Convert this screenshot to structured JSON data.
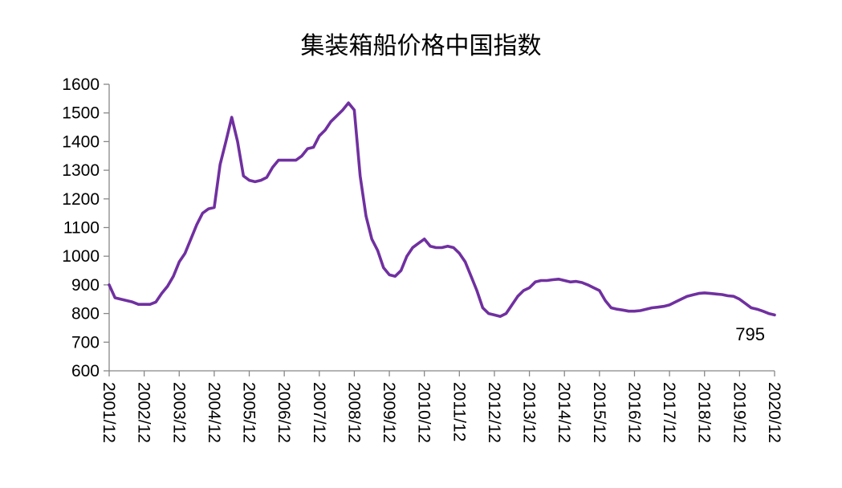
{
  "chart_data": {
    "type": "line",
    "title": "集装箱船价格中国指数",
    "xlabel": "",
    "ylabel": "",
    "ylim": [
      600,
      1600
    ],
    "y_ticks": [
      600,
      700,
      800,
      900,
      1000,
      1100,
      1200,
      1300,
      1400,
      1500,
      1600
    ],
    "x_ticks": [
      "2001/12",
      "2002/12",
      "2003/12",
      "2004/12",
      "2005/12",
      "2006/12",
      "2007/12",
      "2008/12",
      "2009/12",
      "2010/12",
      "2011/12",
      "2012/12",
      "2013/12",
      "2014/12",
      "2015/12",
      "2016/12",
      "2017/12",
      "2018/12",
      "2019/12",
      "2020/12"
    ],
    "grid": false,
    "legend": "none",
    "annotation": {
      "text": "795"
    },
    "line_color": "#7030A0",
    "series": [
      {
        "x": [
          "2001/12",
          "2002/02",
          "2002/04",
          "2002/06",
          "2002/08",
          "2002/10",
          "2002/12",
          "2003/02",
          "2003/04",
          "2003/06",
          "2003/08",
          "2003/10",
          "2003/12",
          "2004/02",
          "2004/04",
          "2004/06",
          "2004/08",
          "2004/10",
          "2004/12",
          "2005/02",
          "2005/04",
          "2005/06",
          "2005/08",
          "2005/10",
          "2005/12",
          "2006/02",
          "2006/04",
          "2006/06",
          "2006/08",
          "2006/10",
          "2006/12",
          "2007/02",
          "2007/04",
          "2007/06",
          "2007/08",
          "2007/10",
          "2007/12",
          "2008/02",
          "2008/04",
          "2008/06",
          "2008/08",
          "2008/10",
          "2008/12",
          "2009/02",
          "2009/04",
          "2009/06",
          "2009/08",
          "2009/10",
          "2009/12",
          "2010/02",
          "2010/04",
          "2010/06",
          "2010/08",
          "2010/10",
          "2010/12",
          "2011/02",
          "2011/04",
          "2011/06",
          "2011/08",
          "2011/10",
          "2011/12",
          "2012/02",
          "2012/04",
          "2012/06",
          "2012/08",
          "2012/10",
          "2012/12",
          "2013/02",
          "2013/04",
          "2013/06",
          "2013/08",
          "2013/10",
          "2013/12",
          "2014/02",
          "2014/04",
          "2014/06",
          "2014/08",
          "2014/10",
          "2014/12",
          "2015/02",
          "2015/04",
          "2015/06",
          "2015/08",
          "2015/10",
          "2015/12",
          "2016/02",
          "2016/04",
          "2016/06",
          "2016/08",
          "2016/10",
          "2016/12",
          "2017/02",
          "2017/04",
          "2017/06",
          "2017/08",
          "2017/10",
          "2017/12",
          "2018/02",
          "2018/04",
          "2018/06",
          "2018/08",
          "2018/10",
          "2018/12",
          "2019/02",
          "2019/04",
          "2019/06",
          "2019/08",
          "2019/10",
          "2019/12",
          "2020/02",
          "2020/04",
          "2020/06",
          "2020/08",
          "2020/10",
          "2020/12"
        ],
        "values": [
          900,
          855,
          850,
          845,
          840,
          832,
          832,
          832,
          840,
          870,
          895,
          930,
          980,
          1010,
          1060,
          1110,
          1150,
          1165,
          1170,
          1320,
          1400,
          1485,
          1400,
          1280,
          1265,
          1260,
          1265,
          1275,
          1310,
          1335,
          1335,
          1335,
          1335,
          1350,
          1375,
          1380,
          1420,
          1440,
          1470,
          1490,
          1510,
          1535,
          1510,
          1280,
          1140,
          1060,
          1020,
          960,
          935,
          930,
          950,
          1000,
          1030,
          1045,
          1060,
          1035,
          1030,
          1030,
          1035,
          1030,
          1010,
          980,
          930,
          880,
          820,
          800,
          795,
          790,
          800,
          830,
          860,
          880,
          890,
          910,
          915,
          915,
          918,
          920,
          915,
          910,
          912,
          908,
          900,
          890,
          880,
          845,
          820,
          815,
          812,
          808,
          808,
          810,
          815,
          820,
          822,
          825,
          830,
          840,
          850,
          860,
          865,
          870,
          872,
          870,
          868,
          866,
          862,
          860,
          850,
          835,
          820,
          815,
          808,
          800,
          795
        ]
      }
    ]
  }
}
